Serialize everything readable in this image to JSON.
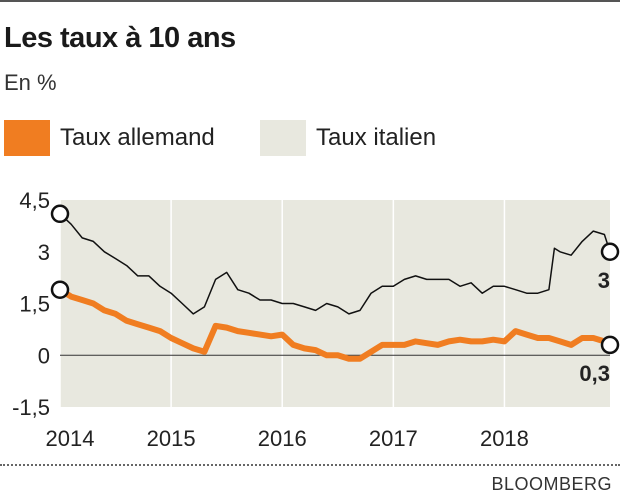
{
  "header": {
    "title": "Les taux à 10 ans",
    "subtitle": "En %"
  },
  "legend": [
    {
      "label": "Taux allemand",
      "color": "#f07d21"
    },
    {
      "label": "Taux italien",
      "color": "#e8e8df"
    }
  ],
  "source": "BLOOMBERG",
  "chart_data": {
    "type": "line",
    "title": "Les taux à 10 ans",
    "subtitle": "En %",
    "xlim": [
      2014,
      2018.95
    ],
    "ylim": [
      -1.5,
      4.5
    ],
    "y_ticks": [
      -1.5,
      0,
      1.5,
      3,
      4.5
    ],
    "y_tick_labels": [
      "-1,5",
      "0",
      "1,5",
      "3",
      "4,5"
    ],
    "x_ticks": [
      2014,
      2015,
      2016,
      2017,
      2018
    ],
    "x_tick_labels": [
      "2014",
      "2015",
      "2016",
      "2017",
      "2018"
    ],
    "plot_background": "#e8e8df",
    "grid": "vertical",
    "series": [
      {
        "name": "Taux italien",
        "color": "#111111",
        "x": [
          2014.0,
          2014.1,
          2014.2,
          2014.3,
          2014.4,
          2014.5,
          2014.6,
          2014.7,
          2014.8,
          2014.9,
          2015.0,
          2015.1,
          2015.2,
          2015.3,
          2015.4,
          2015.5,
          2015.6,
          2015.7,
          2015.8,
          2015.9,
          2016.0,
          2016.1,
          2016.2,
          2016.3,
          2016.4,
          2016.5,
          2016.6,
          2016.7,
          2016.8,
          2016.9,
          2017.0,
          2017.1,
          2017.2,
          2017.3,
          2017.4,
          2017.5,
          2017.6,
          2017.7,
          2017.8,
          2017.9,
          2018.0,
          2018.1,
          2018.2,
          2018.3,
          2018.4,
          2018.45,
          2018.5,
          2018.6,
          2018.7,
          2018.8,
          2018.9,
          2018.95
        ],
        "y": [
          4.1,
          3.8,
          3.4,
          3.3,
          3.0,
          2.8,
          2.6,
          2.3,
          2.3,
          2.0,
          1.8,
          1.5,
          1.2,
          1.4,
          2.2,
          2.4,
          1.9,
          1.8,
          1.6,
          1.6,
          1.5,
          1.5,
          1.4,
          1.3,
          1.5,
          1.4,
          1.2,
          1.3,
          1.8,
          2.0,
          2.0,
          2.2,
          2.3,
          2.2,
          2.2,
          2.2,
          2.0,
          2.1,
          1.8,
          2.0,
          2.0,
          1.9,
          1.8,
          1.8,
          1.9,
          3.1,
          3.0,
          2.9,
          3.3,
          3.6,
          3.5,
          3.0
        ]
      },
      {
        "name": "Taux allemand",
        "color": "#f07d21",
        "x": [
          2014.0,
          2014.1,
          2014.2,
          2014.3,
          2014.4,
          2014.5,
          2014.6,
          2014.7,
          2014.8,
          2014.9,
          2015.0,
          2015.1,
          2015.2,
          2015.3,
          2015.4,
          2015.5,
          2015.6,
          2015.7,
          2015.8,
          2015.9,
          2016.0,
          2016.1,
          2016.2,
          2016.3,
          2016.4,
          2016.5,
          2016.6,
          2016.7,
          2016.8,
          2016.9,
          2017.0,
          2017.1,
          2017.2,
          2017.3,
          2017.4,
          2017.5,
          2017.6,
          2017.7,
          2017.8,
          2017.9,
          2018.0,
          2018.1,
          2018.2,
          2018.3,
          2018.4,
          2018.5,
          2018.6,
          2018.7,
          2018.8,
          2018.9,
          2018.95
        ],
        "y": [
          1.9,
          1.7,
          1.6,
          1.5,
          1.3,
          1.2,
          1.0,
          0.9,
          0.8,
          0.7,
          0.5,
          0.35,
          0.2,
          0.1,
          0.85,
          0.8,
          0.7,
          0.65,
          0.6,
          0.55,
          0.6,
          0.3,
          0.2,
          0.15,
          0.0,
          0.0,
          -0.1,
          -0.1,
          0.1,
          0.3,
          0.3,
          0.3,
          0.4,
          0.35,
          0.3,
          0.4,
          0.45,
          0.4,
          0.4,
          0.45,
          0.4,
          0.7,
          0.6,
          0.5,
          0.5,
          0.4,
          0.3,
          0.5,
          0.5,
          0.4,
          0.3
        ]
      }
    ],
    "annotations": [
      {
        "label": "3",
        "series": "Taux italien"
      },
      {
        "label": "0,3",
        "series": "Taux allemand"
      }
    ]
  }
}
